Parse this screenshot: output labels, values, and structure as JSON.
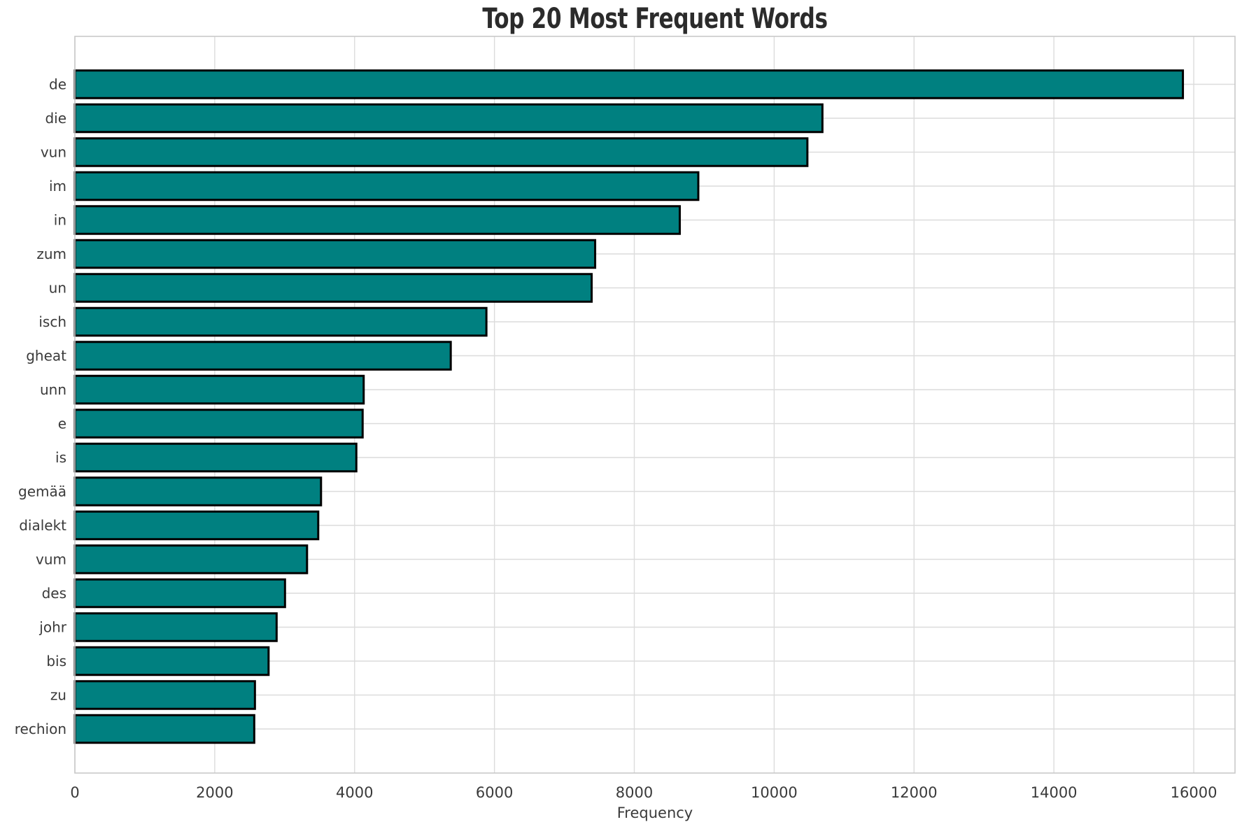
{
  "title": "Top 20 Most Frequent Words",
  "chart_data": {
    "type": "bar",
    "orientation": "horizontal",
    "title": "Top 20 Most Frequent Words",
    "xlabel": "Frequency",
    "ylabel": "",
    "categories": [
      "de",
      "die",
      "vun",
      "im",
      "in",
      "zum",
      "un",
      "isch",
      "gheat",
      "unn",
      "e",
      "is",
      "gemää",
      "dialekt",
      "vum",
      "des",
      "johr",
      "bis",
      "zu",
      "rechion"
    ],
    "values": [
      15845,
      10690,
      10475,
      8915,
      8650,
      7440,
      7390,
      5885,
      5375,
      4130,
      4115,
      4025,
      3520,
      3480,
      3320,
      3005,
      2885,
      2770,
      2575,
      2565
    ],
    "xlim": [
      0,
      16590
    ],
    "xticks": [
      0,
      2000,
      4000,
      6000,
      8000,
      10000,
      12000,
      14000,
      16000
    ],
    "grid": true,
    "legend": false,
    "colors": {
      "bar_fill": "#008080",
      "bar_edge": "#000000",
      "grid_line": "#dcdcdc",
      "spine": "#c9c9c9",
      "tick_text": "#3a3a3a",
      "title_text": "#2b2b2b",
      "background": "#ffffff"
    }
  }
}
